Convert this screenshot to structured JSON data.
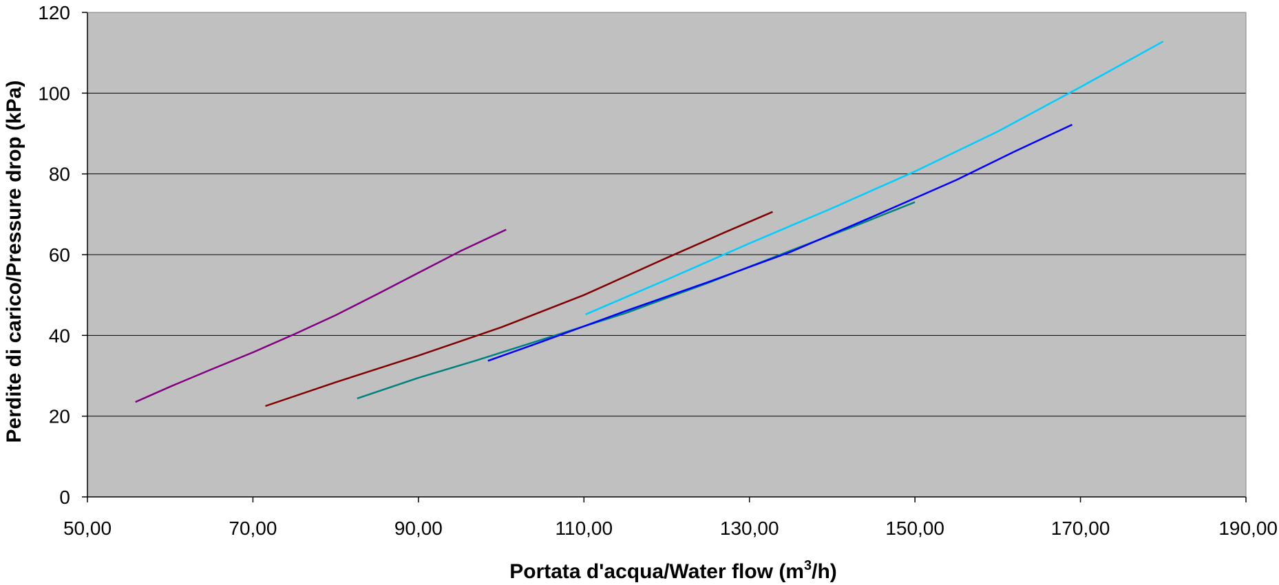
{
  "chart_data": {
    "type": "line",
    "title": "",
    "xlabel_main": "Portata d'acqua/Water flow (m",
    "xlabel_sup": "3",
    "xlabel_end": "/h)",
    "ylabel": "Perdite di carico/Pressure drop (kPa)",
    "xlim": [
      50,
      190
    ],
    "ylim": [
      0,
      120
    ],
    "x_ticks": [
      50,
      70,
      90,
      110,
      130,
      150,
      170,
      190
    ],
    "x_tick_labels": [
      "50,00",
      "70,00",
      "90,00",
      "110,00",
      "130,00",
      "150,00",
      "170,00",
      "190,00"
    ],
    "y_ticks": [
      0,
      20,
      40,
      60,
      80,
      100,
      120
    ],
    "y_tick_labels": [
      "0",
      "20",
      "40",
      "60",
      "80",
      "100",
      "120"
    ],
    "grid": "horizontal",
    "plot_background": "#C0C0C0",
    "gridline_color": "#000000",
    "series": [
      {
        "color": "#800080",
        "points": [
          [
            55.8,
            23.5
          ],
          [
            60,
            27.3
          ],
          [
            65,
            31.6
          ],
          [
            70,
            35.8
          ],
          [
            75,
            40.3
          ],
          [
            80,
            45.0
          ],
          [
            85,
            50.2
          ],
          [
            90,
            55.5
          ],
          [
            95,
            60.8
          ],
          [
            100.6,
            66.2
          ]
        ]
      },
      {
        "color": "#800000",
        "points": [
          [
            71.5,
            22.5
          ],
          [
            80,
            28.4
          ],
          [
            90,
            35.0
          ],
          [
            100,
            42.0
          ],
          [
            110,
            50.0
          ],
          [
            120,
            59.2
          ],
          [
            127,
            65.5
          ],
          [
            132.8,
            70.6
          ]
        ]
      },
      {
        "color": "#008080",
        "points": [
          [
            82.6,
            24.4
          ],
          [
            90,
            29.5
          ],
          [
            97,
            33.8
          ],
          [
            105,
            39.0
          ],
          [
            115,
            45.5
          ],
          [
            125,
            53.0
          ],
          [
            135,
            61.0
          ],
          [
            142,
            66.5
          ],
          [
            150,
            73.0
          ]
        ]
      },
      {
        "color": "#0000FF",
        "points": [
          [
            98.4,
            33.7
          ],
          [
            105,
            38.5
          ],
          [
            115,
            46.0
          ],
          [
            125,
            53.2
          ],
          [
            135,
            60.7
          ],
          [
            145,
            69.5
          ],
          [
            155,
            78.5
          ],
          [
            162,
            85.5
          ],
          [
            169,
            92.2
          ]
        ]
      },
      {
        "color": "#00CCFF",
        "points": [
          [
            110.2,
            45.2
          ],
          [
            120,
            53.8
          ],
          [
            130,
            62.8
          ],
          [
            140,
            71.5
          ],
          [
            150,
            80.6
          ],
          [
            160,
            90.5
          ],
          [
            170,
            101.5
          ],
          [
            180,
            112.8
          ]
        ]
      }
    ]
  }
}
